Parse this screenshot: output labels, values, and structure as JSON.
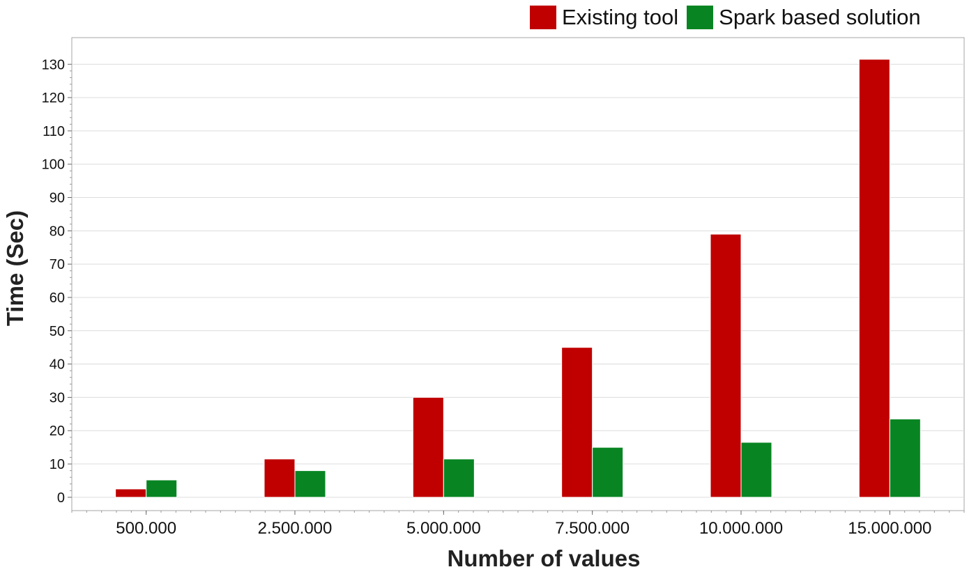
{
  "chart_data": {
    "type": "bar",
    "categories": [
      "500.000",
      "2.500.000",
      "5.000.000",
      "7.500.000",
      "10.000.000",
      "15.000.000"
    ],
    "series": [
      {
        "name": "Existing tool",
        "color": "#c00000",
        "values": [
          2.5,
          11.5,
          30,
          45,
          79,
          131.5
        ]
      },
      {
        "name": "Spark based solution",
        "color": "#088522",
        "values": [
          5.2,
          8,
          11.5,
          15,
          16.5,
          23.5
        ]
      }
    ],
    "xlabel": "Number of values",
    "ylabel": "Time (Sec)",
    "ylim": [
      -4,
      138
    ],
    "yticks": [
      0,
      10,
      20,
      30,
      40,
      50,
      60,
      70,
      80,
      90,
      100,
      110,
      120,
      130
    ],
    "grid": true,
    "legend_position": "top-right"
  }
}
